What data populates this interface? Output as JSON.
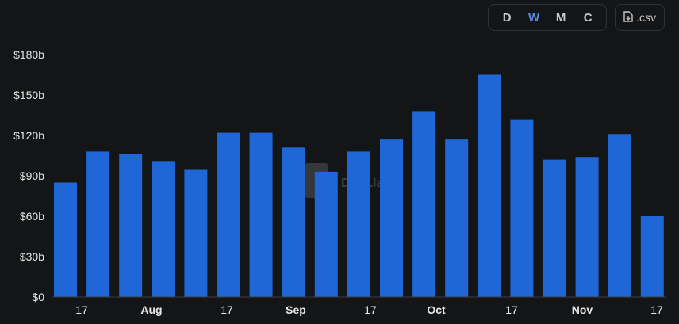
{
  "toolbar": {
    "periods": [
      "D",
      "W",
      "M",
      "C"
    ],
    "active_period": "W",
    "csv_label": ".csv"
  },
  "watermark": {
    "text": "DefiLlama",
    "icon": "llama-logo-icon"
  },
  "colors": {
    "bar": "#1f66d6",
    "background": "#141517",
    "axis_text": "#e6e6e6",
    "active": "#5b8fe6"
  },
  "chart_data": {
    "type": "bar",
    "xlabel": "",
    "ylabel": "",
    "x_tick_labels": [
      "17",
      "Aug",
      "17",
      "Sep",
      "17",
      "Oct",
      "17",
      "Nov",
      "17"
    ],
    "y_tick_labels": [
      "$0",
      "$30b",
      "$60b",
      "$90b",
      "$120b",
      "$150b",
      "$180b"
    ],
    "ylim": [
      0,
      180
    ],
    "grid": false,
    "values": [
      85,
      108,
      106,
      101,
      95,
      122,
      122,
      111,
      93,
      108,
      117,
      138,
      117,
      165,
      132,
      102,
      104,
      121,
      60
    ]
  }
}
